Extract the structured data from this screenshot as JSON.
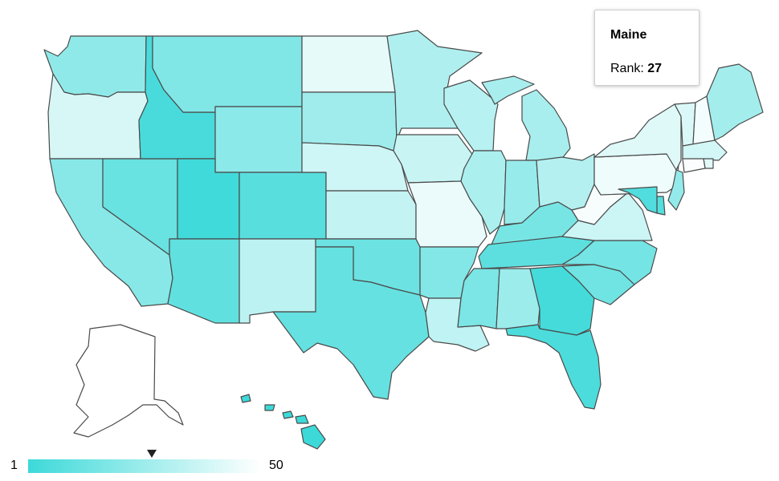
{
  "tooltip": {
    "state": "Maine",
    "rank_label": "Rank:",
    "rank_value": "27"
  },
  "legend": {
    "min_label": "1",
    "max_label": "50",
    "min_color": "#3dd9d9",
    "max_color": "#ffffff",
    "marker_rank": 27
  },
  "colors": {
    "stroke": "#4a4a4a",
    "background": "#ffffff"
  },
  "states": [
    {
      "name": "Washington",
      "rank": 22
    },
    {
      "name": "Oregon",
      "rank": 40
    },
    {
      "name": "California",
      "rank": 20
    },
    {
      "name": "Nevada",
      "rank": 12
    },
    {
      "name": "Idaho",
      "rank": 4
    },
    {
      "name": "Montana",
      "rank": 18
    },
    {
      "name": "Wyoming",
      "rank": 21
    },
    {
      "name": "Utah",
      "rank": 2
    },
    {
      "name": "Arizona",
      "rank": 10
    },
    {
      "name": "Colorado",
      "rank": 8
    },
    {
      "name": "New Mexico",
      "rank": 33
    },
    {
      "name": "North Dakota",
      "rank": 44
    },
    {
      "name": "South Dakota",
      "rank": 26
    },
    {
      "name": "Nebraska",
      "rank": 38
    },
    {
      "name": "Kansas",
      "rank": 35
    },
    {
      "name": "Oklahoma",
      "rank": 13
    },
    {
      "name": "Texas",
      "rank": 11
    },
    {
      "name": "Minnesota",
      "rank": 30
    },
    {
      "name": "Iowa",
      "rank": 36
    },
    {
      "name": "Missouri",
      "rank": 45
    },
    {
      "name": "Arkansas",
      "rank": 19
    },
    {
      "name": "Louisiana",
      "rank": 34
    },
    {
      "name": "Wisconsin",
      "rank": 32
    },
    {
      "name": "Illinois",
      "rank": 29
    },
    {
      "name": "Michigan",
      "rank": 28
    },
    {
      "name": "Indiana",
      "rank": 24
    },
    {
      "name": "Ohio",
      "rank": 31
    },
    {
      "name": "Kentucky",
      "rank": 16
    },
    {
      "name": "Tennessee",
      "rank": 9
    },
    {
      "name": "Mississippi",
      "rank": 17
    },
    {
      "name": "Alabama",
      "rank": 25
    },
    {
      "name": "Georgia",
      "rank": 3
    },
    {
      "name": "Florida",
      "rank": 5
    },
    {
      "name": "South Carolina",
      "rank": 14
    },
    {
      "name": "North Carolina",
      "rank": 15
    },
    {
      "name": "Virginia",
      "rank": 37
    },
    {
      "name": "West Virginia",
      "rank": 48
    },
    {
      "name": "Pennsylvania",
      "rank": 46
    },
    {
      "name": "New York",
      "rank": 42
    },
    {
      "name": "Vermont",
      "rank": 41
    },
    {
      "name": "New Hampshire",
      "rank": 47
    },
    {
      "name": "Maine",
      "rank": 27
    },
    {
      "name": "Massachusetts",
      "rank": 39
    },
    {
      "name": "Rhode Island",
      "rank": 43
    },
    {
      "name": "Connecticut",
      "rank": 49
    },
    {
      "name": "New Jersey",
      "rank": 23
    },
    {
      "name": "Delaware",
      "rank": 7
    },
    {
      "name": "Maryland",
      "rank": 6
    },
    {
      "name": "Alaska",
      "rank": 50
    },
    {
      "name": "Hawaii",
      "rank": 1
    }
  ]
}
